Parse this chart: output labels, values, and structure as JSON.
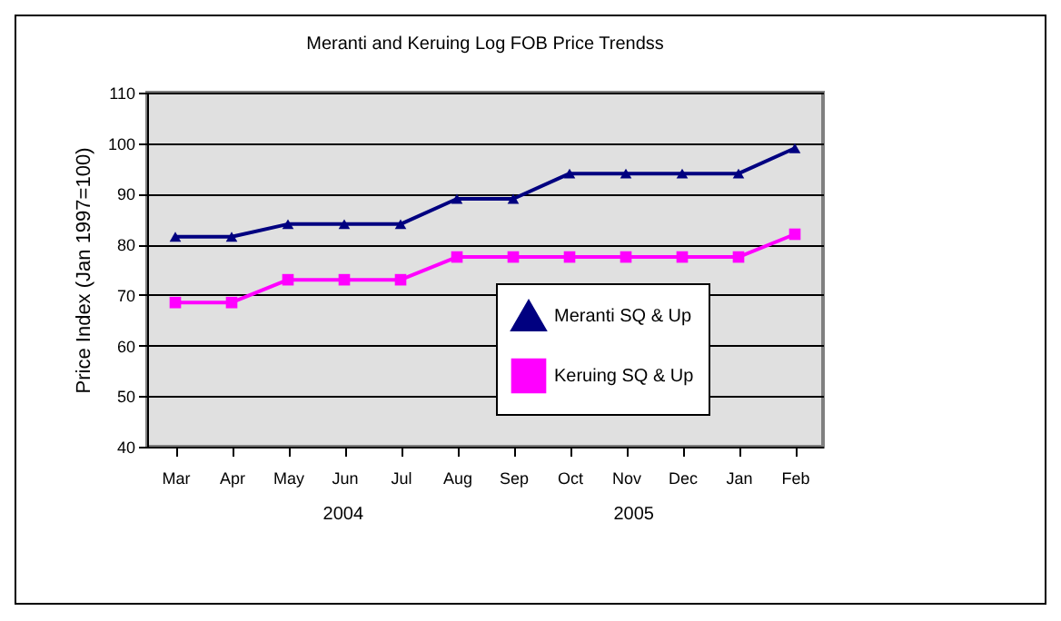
{
  "chart_data": {
    "type": "line",
    "title": "Meranti and Keruing Log FOB Price Trendss",
    "ylabel": "Price Index (Jan 1997=100)",
    "categories": [
      "Mar",
      "Apr",
      "May",
      "Jun",
      "Jul",
      "Aug",
      "Sep",
      "Oct",
      "Nov",
      "Dec",
      "Jan",
      "Feb"
    ],
    "series": [
      {
        "name": "Meranti SQ & Up",
        "color": "#000080",
        "marker": "triangle",
        "values": [
          81.5,
          81.5,
          84,
          84,
          84,
          89,
          89,
          94,
          94,
          94,
          94,
          99
        ]
      },
      {
        "name": "Keruing SQ & Up",
        "color": "#ff00ff",
        "marker": "square",
        "values": [
          68.5,
          68.5,
          73,
          73,
          73,
          77.5,
          77.5,
          77.5,
          77.5,
          77.5,
          77.5,
          82
        ]
      }
    ],
    "ylim": [
      40,
      110
    ],
    "yticks": [
      40,
      50,
      60,
      70,
      80,
      90,
      100,
      110
    ],
    "grid": "y",
    "legend": "right",
    "annotations": [
      "2004",
      "2005"
    ]
  }
}
